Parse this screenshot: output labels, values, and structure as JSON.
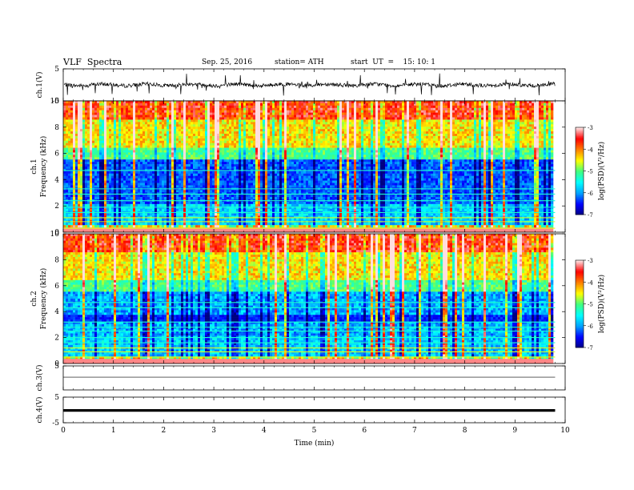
{
  "header": {
    "title": "VLF  Spectra",
    "date": "Sep. 25, 2016",
    "station": "station= ATH",
    "start": "start  UT  =    15: 10: 1"
  },
  "chart_data": {
    "type": "heatmap",
    "xlabel": "Time  (min)",
    "xlim": [
      0,
      10
    ],
    "xticks": [
      "0",
      "1",
      "2",
      "3",
      "4",
      "5",
      "6",
      "7",
      "8",
      "9",
      "10"
    ],
    "data_end_min": 9.8,
    "panels": [
      {
        "id": "ch1-waveform",
        "type": "line",
        "ylabel": "ch.1(V)",
        "ylim": [
          -5,
          5
        ],
        "yticks": [
          "5",
          "-5"
        ],
        "baseline": 0,
        "noise_amplitude": 0.6,
        "spike_amplitude": 3.5
      },
      {
        "id": "ch1-spectrogram",
        "type": "heatmap",
        "ylabel_top": "ch.1",
        "ylabel": "Frequency  (kHz)",
        "ylim": [
          0,
          10
        ],
        "yticks": [
          "0",
          "2",
          "4",
          "6",
          "8",
          "10"
        ],
        "colorbar": {
          "label": "log(PSD)(V²/Hz)",
          "range": [
            -7,
            -3
          ],
          "ticks": [
            "-3",
            "-4",
            "-5",
            "-6",
            "-7"
          ]
        }
      },
      {
        "id": "ch2-spectrogram",
        "type": "heatmap",
        "ylabel_top": "ch.2",
        "ylabel": "Frequency  (kHz)",
        "ylim": [
          0,
          10
        ],
        "yticks": [
          "0",
          "2",
          "4",
          "6",
          "8",
          "10"
        ],
        "colorbar": {
          "label": "log(PSD)(V²/Hz)",
          "range": [
            -7,
            -3
          ],
          "ticks": [
            "-3",
            "-4",
            "-5",
            "-6",
            "-7"
          ]
        }
      },
      {
        "id": "ch3-waveform",
        "type": "line",
        "ylabel": "ch.3(V)",
        "ylim": [
          -5,
          5
        ],
        "yticks": [
          "5"
        ],
        "baseline": 0
      },
      {
        "id": "ch4-waveform",
        "type": "line",
        "ylabel": "ch.4(V)",
        "ylim": [
          -5,
          5
        ],
        "yticks": [
          "5",
          "-5"
        ],
        "baseline": -0.2
      }
    ],
    "grid": false,
    "colormap": [
      "#000080",
      "#0000ff",
      "#00a0ff",
      "#00ffff",
      "#40ff80",
      "#ffff00",
      "#ff8000",
      "#ff0000",
      "#ffe0e0"
    ]
  }
}
